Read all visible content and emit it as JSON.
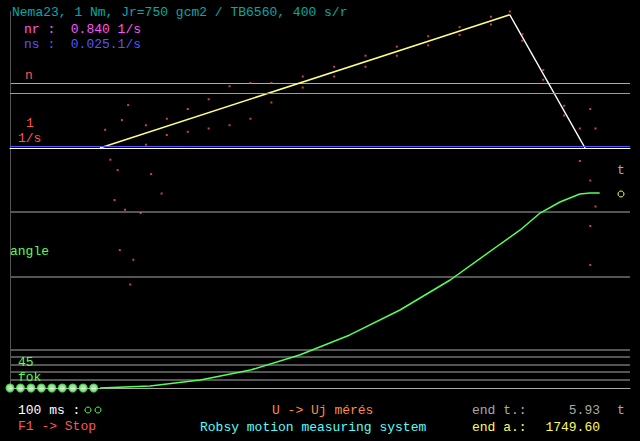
{
  "chart_data": [
    {
      "type": "line",
      "title": "Nema23, 1 Nm, Jr=750 gcm2 / TB6560, 400 s/r",
      "ylabel": "n",
      "ylabel_unit": [
        "1",
        "1/s"
      ],
      "reference_lines": [
        {
          "text": "nr :  0.840 1/s",
          "value": 0.84,
          "color": "#ff55ff"
        },
        {
          "text": "ns :  0.025.1/s",
          "value": 0.025,
          "color": "#5555ff"
        }
      ],
      "xlim": [
        0,
        5.93
      ],
      "ylim": [
        -2.2,
        2.1
      ],
      "yticks": [
        0,
        1
      ],
      "grid": true,
      "tick_labels": false,
      "series": [
        {
          "type": "scatter",
          "color": "#ff5555",
          "marker": "dot",
          "x": [
            0.91,
            0.96,
            1.0,
            1.03,
            1.05,
            1.07,
            1.1,
            1.13,
            1.15,
            1.18,
            1.25,
            1.35,
            1.45,
            1.3,
            1.3,
            1.5,
            1.5,
            1.7,
            1.7,
            1.9,
            1.9,
            2.1,
            2.1,
            2.3,
            2.3,
            2.5,
            2.5,
            2.8,
            2.8,
            3.1,
            3.1,
            3.4,
            3.4,
            3.7,
            3.7,
            4.0,
            4.0,
            4.3,
            4.3,
            4.6,
            4.6,
            4.78,
            4.9,
            4.9,
            5.1,
            5.1,
            5.3,
            5.3,
            5.45,
            5.45,
            5.55,
            5.55,
            5.55,
            5.55,
            5.6,
            5.6
          ],
          "values": [
            0.28,
            -0.18,
            -0.8,
            -0.34,
            -1.57,
            0.43,
            -0.95,
            0.66,
            -2.1,
            -1.72,
            -1.0,
            -0.4,
            -0.7,
            0.35,
            0.05,
            0.45,
            0.2,
            0.6,
            0.25,
            0.75,
            0.3,
            0.95,
            0.35,
            1.0,
            0.45,
            1.0,
            0.7,
            1.1,
            0.93,
            1.25,
            1.1,
            1.42,
            1.25,
            1.56,
            1.42,
            1.72,
            1.58,
            1.86,
            1.74,
            2.02,
            1.9,
            2.1,
            1.75,
            1.65,
            1.2,
            1.05,
            0.65,
            0.5,
            0.3,
            -0.2,
            0.6,
            -0.5,
            -1.2,
            -1.8,
            0.3,
            -0.9
          ]
        },
        {
          "type": "line",
          "color": "#ffff80",
          "line_style": "solid",
          "x": [
            0.86,
            4.78
          ],
          "values": [
            0,
            2.05
          ]
        },
        {
          "type": "line",
          "color": "#ffffff",
          "line_style": "solid",
          "x": [
            4.78,
            5.5
          ],
          "values": [
            2.05,
            0
          ]
        }
      ]
    },
    {
      "type": "line",
      "ylabel": "angle",
      "scale_label": [
        "45",
        "fok"
      ],
      "xlabel": "t",
      "xlim": [
        0,
        5.93
      ],
      "ylim": [
        0,
        1800
      ],
      "yticks": [
        0
      ],
      "grid": true,
      "tick_labels": false,
      "series": [
        {
          "type": "scatter",
          "color": "#55ff55",
          "marker": "circle",
          "x": [
            0,
            0.1,
            0.2,
            0.3,
            0.4,
            0.5,
            0.6,
            0.7,
            0.8
          ],
          "values": [
            0,
            0,
            0,
            0,
            0,
            0,
            0,
            0,
            0
          ]
        },
        {
          "type": "line",
          "color": "#55ff55",
          "line_style": "solid",
          "x": [
            0.86,
            1.34,
            1.82,
            2.3,
            2.77,
            3.25,
            3.73,
            4.21,
            4.69,
            4.88,
            5.07,
            5.26,
            5.45,
            5.55,
            5.64
          ],
          "values": [
            0,
            18,
            72,
            161,
            296,
            476,
            700,
            969,
            1292,
            1418,
            1570,
            1669,
            1741,
            1749.6,
            1749.6
          ]
        }
      ],
      "footer": [
        {
          "text": "100 ms :",
          "color": "#ffffff"
        },
        {
          "text": "F1 -> Stop",
          "color": "#ff5555"
        },
        {
          "text": "U -> Uj mérés",
          "color": "#ff8c40"
        },
        {
          "text": "Robsy motion measuring system",
          "color": "#55ffff"
        }
      ],
      "end_time": {
        "label": "end t.:",
        "value": 5.93,
        "unit": "t",
        "color": "#aaaaaa"
      },
      "end_angle": {
        "label": "end a.:",
        "value": 1749.6,
        "value_label": "1749.60",
        "color": "#ffff55"
      }
    }
  ]
}
